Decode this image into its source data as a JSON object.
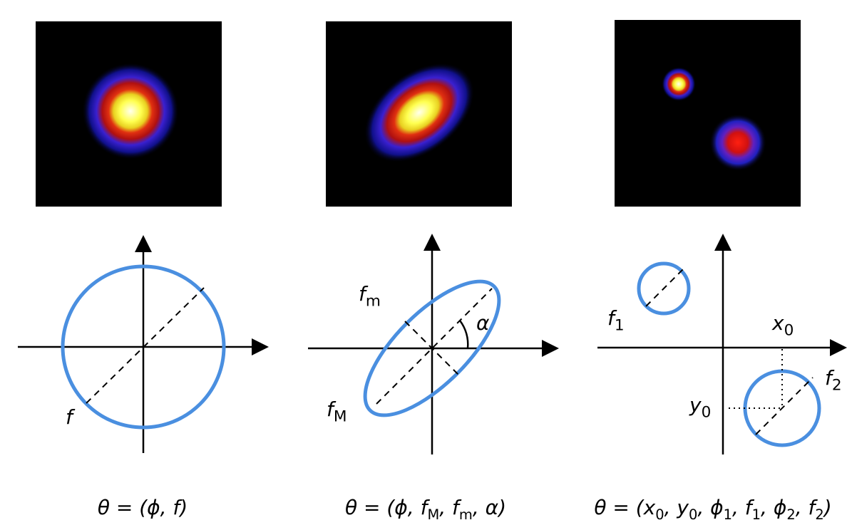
{
  "panels": [
    {
      "labels": [
        [
          {
            "text": "f"
          }
        ]
      ],
      "formula": [
        {
          "text": "θ = (ϕ, f)"
        }
      ]
    },
    {
      "labels": [
        [
          {
            "text": "f"
          },
          {
            "sub": "m"
          }
        ],
        [
          {
            "text": "f"
          },
          {
            "sub": "M"
          }
        ],
        [
          {
            "text": "α"
          }
        ]
      ],
      "formula": [
        {
          "text": "θ = (ϕ, f"
        },
        {
          "sub": "M"
        },
        {
          "text": ", f"
        },
        {
          "sub": "m"
        },
        {
          "text": ", α)"
        }
      ]
    },
    {
      "labels": [
        [
          {
            "text": "f"
          },
          {
            "sub": "1"
          }
        ],
        [
          {
            "text": "x"
          },
          {
            "sub": "0"
          }
        ],
        [
          {
            "text": "f"
          },
          {
            "sub": "2"
          }
        ],
        [
          {
            "text": "y"
          },
          {
            "sub": "0"
          }
        ]
      ],
      "formula": [
        {
          "text": "θ = (x"
        },
        {
          "sub": "0"
        },
        {
          "text": ", y"
        },
        {
          "sub": "0"
        },
        {
          "text": ", ϕ"
        },
        {
          "sub": "1"
        },
        {
          "text": ", f"
        },
        {
          "sub": "1"
        },
        {
          "text": ", ϕ"
        },
        {
          "sub": "2"
        },
        {
          "text": ", f"
        },
        {
          "sub": "2"
        },
        {
          "text": ")"
        }
      ]
    }
  ]
}
